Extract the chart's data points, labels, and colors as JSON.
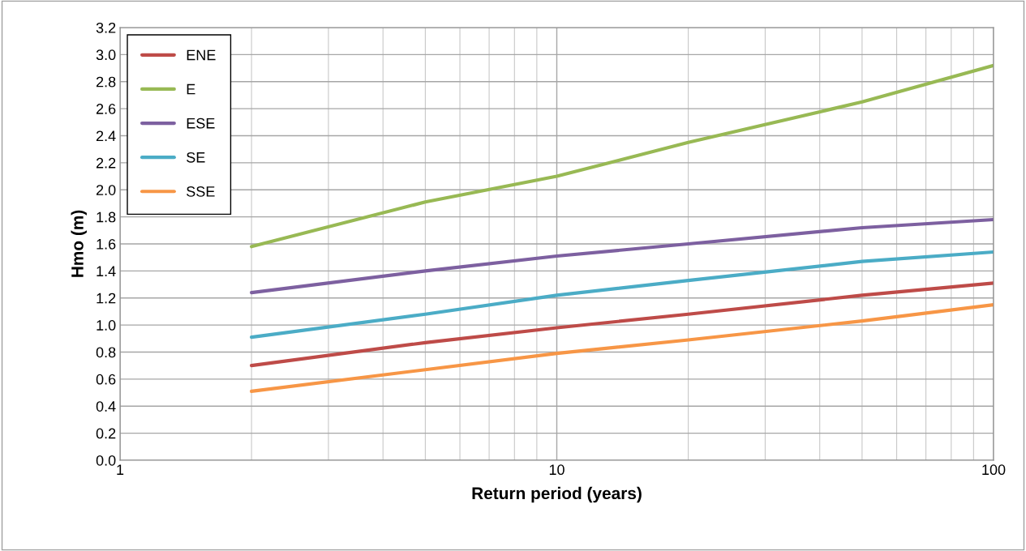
{
  "chart_data": {
    "type": "line",
    "xlabel": "Return period (years)",
    "ylabel": "Hmo (m)",
    "log": "x",
    "grid": true,
    "legend": "top left",
    "marker": "none",
    "line_style": "solid",
    "xlim": [
      1,
      100
    ],
    "xticks": [
      1,
      10,
      100
    ],
    "ylim": [
      0,
      3.2
    ],
    "yticks": [
      {
        "value": 0,
        "label": "0.0"
      },
      0.2,
      0.4,
      0.6,
      0.8,
      {
        "value": 1,
        "label": "1.0"
      },
      1.2,
      1.4,
      1.6,
      1.8,
      {
        "value": 2,
        "label": "2.0"
      },
      2.2,
      2.4,
      2.6,
      2.8,
      {
        "value": 3,
        "label": "3.0"
      },
      3.2
    ],
    "x": [
      2,
      5,
      10,
      20,
      50,
      100
    ],
    "series": [
      {
        "name": "ENE",
        "color": "#be4b48",
        "values": [
          0.7,
          0.87,
          0.98,
          1.08,
          1.22,
          1.31
        ]
      },
      {
        "name": "E",
        "color": "#98b954",
        "values": [
          1.58,
          1.91,
          2.1,
          2.35,
          2.65,
          2.92
        ]
      },
      {
        "name": "ESE",
        "color": "#7d60a0",
        "values": [
          1.24,
          1.4,
          1.51,
          1.6,
          1.72,
          1.78
        ]
      },
      {
        "name": "SE",
        "color": "#4bacc6",
        "values": [
          0.91,
          1.08,
          1.22,
          1.33,
          1.47,
          1.54
        ]
      },
      {
        "name": "SSE",
        "color": "#f79646",
        "values": [
          0.51,
          0.67,
          0.79,
          0.89,
          1.03,
          1.15
        ]
      }
    ]
  }
}
